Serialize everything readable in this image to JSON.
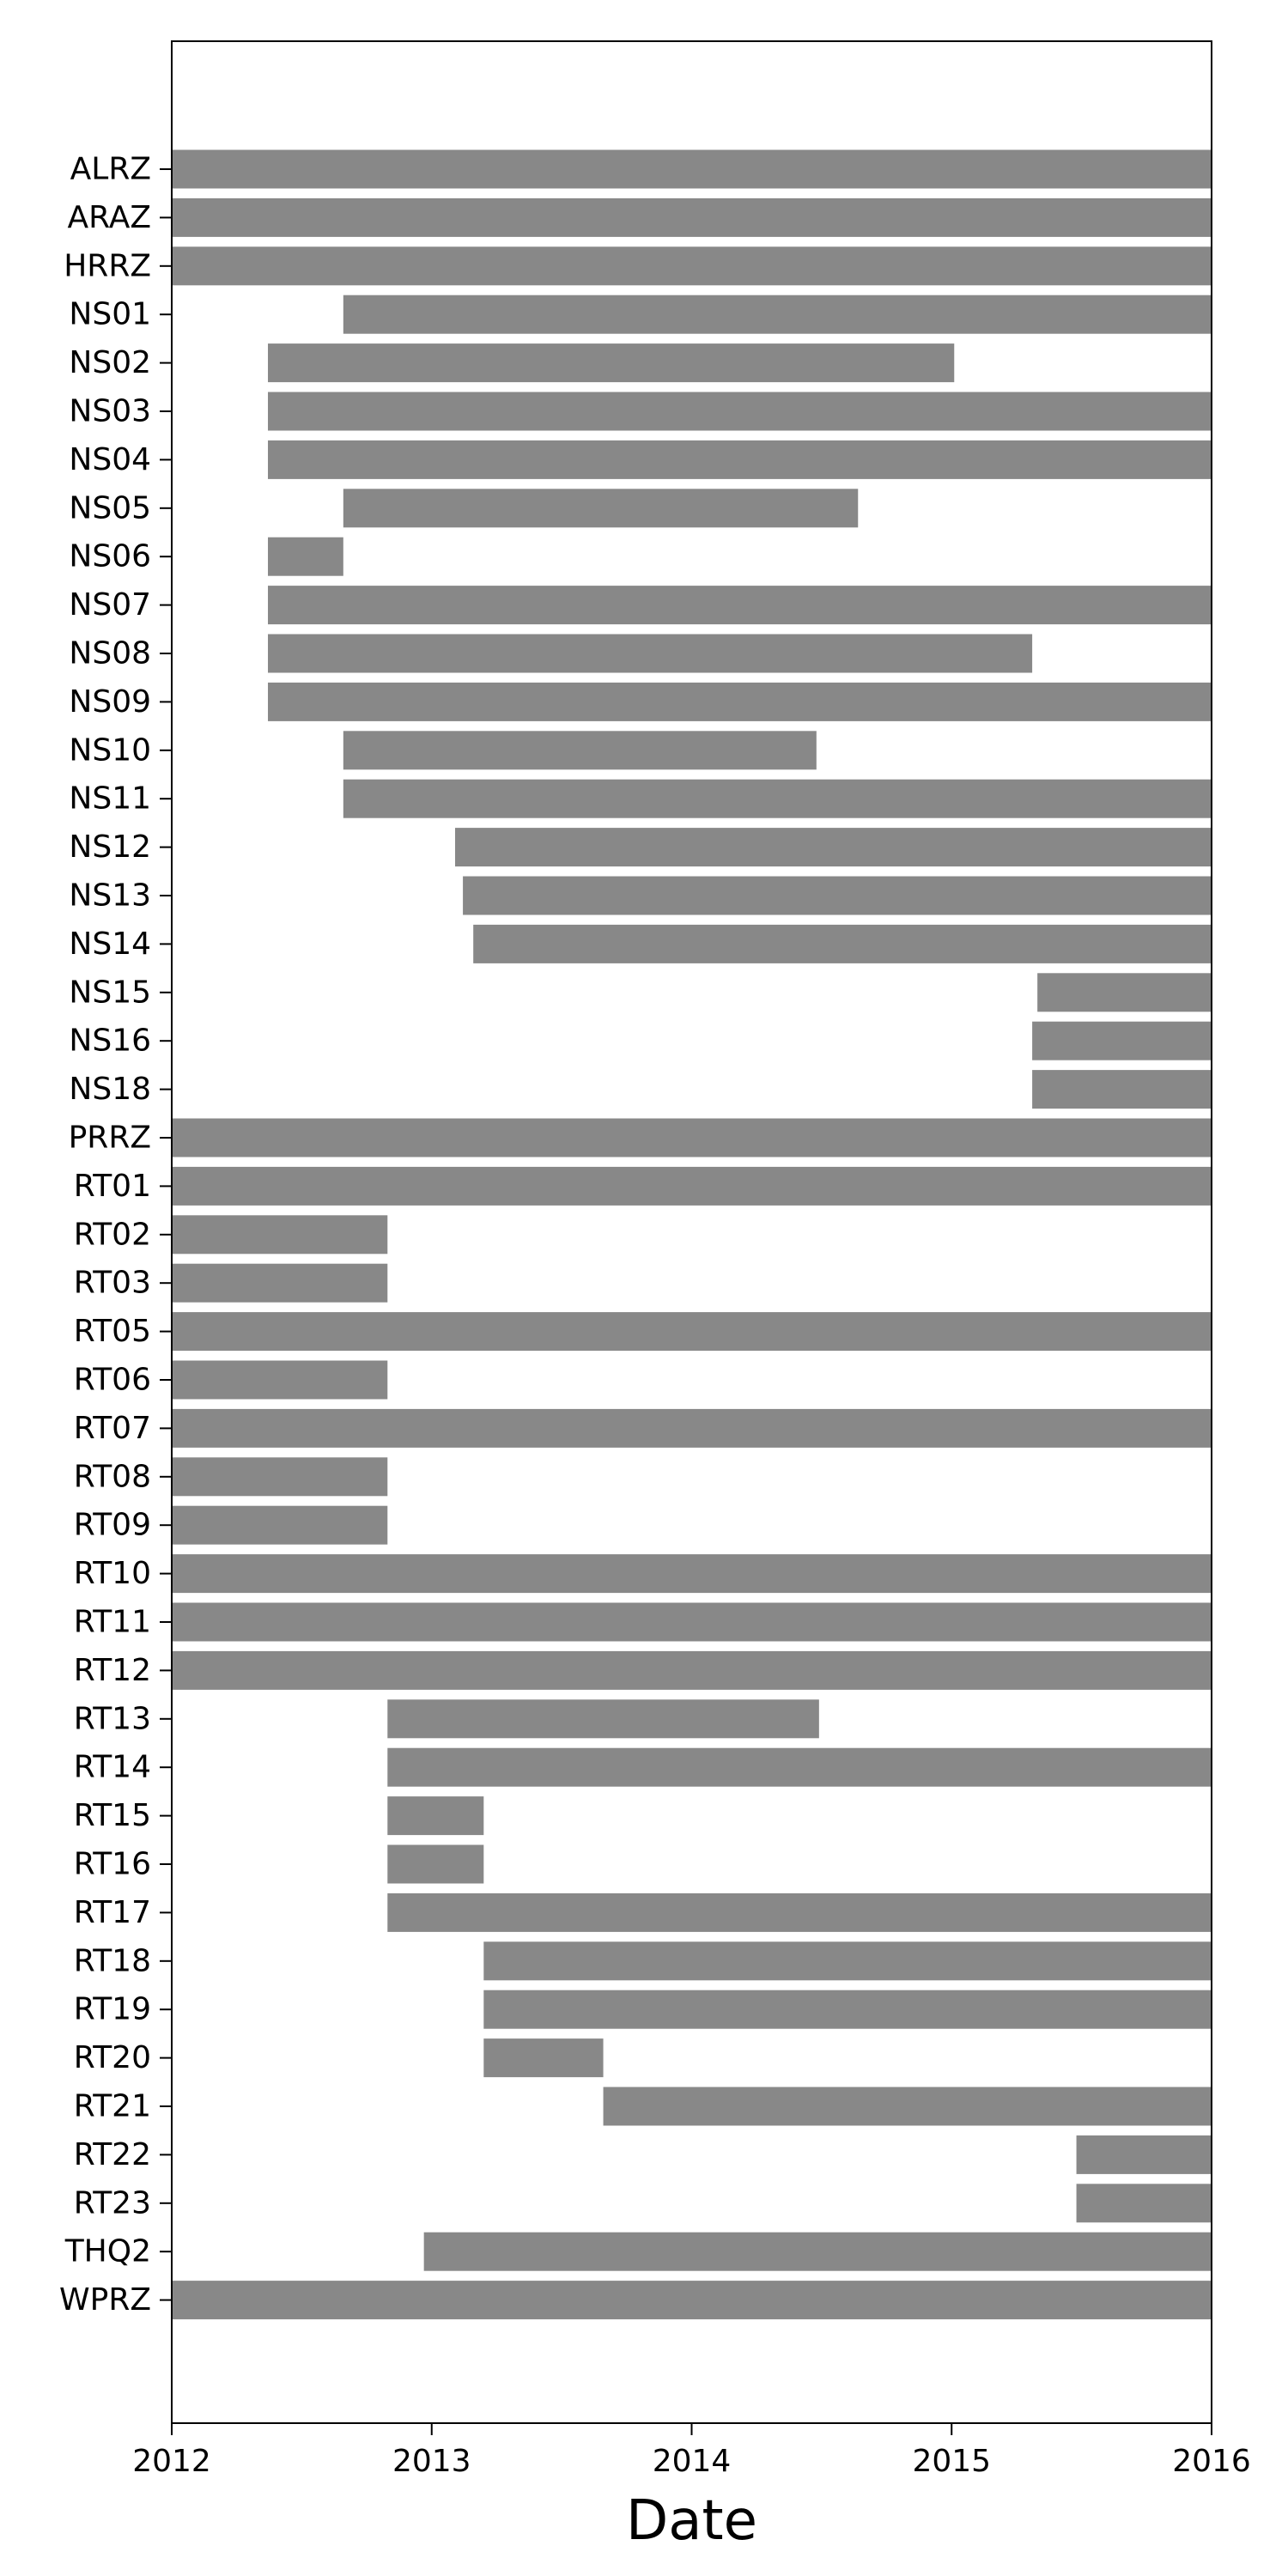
{
  "chart_data": {
    "type": "bar",
    "orientation": "horizontal",
    "bar_color": "#888888",
    "xlabel": "Date",
    "ylabel": "",
    "title": "",
    "xlim": [
      2012.0,
      2016.0
    ],
    "x_ticks": [
      "2012",
      "2013",
      "2014",
      "2015",
      "2016"
    ],
    "grid": false,
    "categories": [
      "ALRZ",
      "ARAZ",
      "HRRZ",
      "NS01",
      "NS02",
      "NS03",
      "NS04",
      "NS05",
      "NS06",
      "NS07",
      "NS08",
      "NS09",
      "NS10",
      "NS11",
      "NS12",
      "NS13",
      "NS14",
      "NS15",
      "NS16",
      "NS18",
      "PRRZ",
      "RT01",
      "RT02",
      "RT03",
      "RT05",
      "RT06",
      "RT07",
      "RT08",
      "RT09",
      "RT10",
      "RT11",
      "RT12",
      "RT13",
      "RT14",
      "RT15",
      "RT16",
      "RT17",
      "RT18",
      "RT19",
      "RT20",
      "RT21",
      "RT22",
      "RT23",
      "THQ2",
      "WPRZ"
    ],
    "intervals": [
      {
        "station": "ALRZ",
        "start": 2012.0,
        "end": 2016.0
      },
      {
        "station": "ARAZ",
        "start": 2012.0,
        "end": 2016.0
      },
      {
        "station": "HRRZ",
        "start": 2012.0,
        "end": 2016.0
      },
      {
        "station": "NS01",
        "start": 2012.66,
        "end": 2016.0
      },
      {
        "station": "NS02",
        "start": 2012.37,
        "end": 2015.01
      },
      {
        "station": "NS03",
        "start": 2012.37,
        "end": 2016.0
      },
      {
        "station": "NS04",
        "start": 2012.37,
        "end": 2016.0
      },
      {
        "station": "NS05",
        "start": 2012.66,
        "end": 2014.64
      },
      {
        "station": "NS06",
        "start": 2012.37,
        "end": 2012.66
      },
      {
        "station": "NS07",
        "start": 2012.37,
        "end": 2016.0
      },
      {
        "station": "NS08",
        "start": 2012.37,
        "end": 2015.31
      },
      {
        "station": "NS09",
        "start": 2012.37,
        "end": 2016.0
      },
      {
        "station": "NS10",
        "start": 2012.66,
        "end": 2014.48
      },
      {
        "station": "NS11",
        "start": 2012.66,
        "end": 2016.0
      },
      {
        "station": "NS12",
        "start": 2013.09,
        "end": 2016.0
      },
      {
        "station": "NS13",
        "start": 2013.12,
        "end": 2016.0
      },
      {
        "station": "NS14",
        "start": 2013.16,
        "end": 2016.0
      },
      {
        "station": "NS15",
        "start": 2015.33,
        "end": 2016.0
      },
      {
        "station": "NS16",
        "start": 2015.31,
        "end": 2016.0
      },
      {
        "station": "NS18",
        "start": 2015.31,
        "end": 2016.0
      },
      {
        "station": "PRRZ",
        "start": 2012.0,
        "end": 2016.0
      },
      {
        "station": "RT01",
        "start": 2012.0,
        "end": 2016.0
      },
      {
        "station": "RT02",
        "start": 2012.0,
        "end": 2012.83
      },
      {
        "station": "RT03",
        "start": 2012.0,
        "end": 2012.83
      },
      {
        "station": "RT05",
        "start": 2012.0,
        "end": 2016.0
      },
      {
        "station": "RT06",
        "start": 2012.0,
        "end": 2012.83
      },
      {
        "station": "RT07",
        "start": 2012.0,
        "end": 2016.0
      },
      {
        "station": "RT08",
        "start": 2012.0,
        "end": 2012.83
      },
      {
        "station": "RT09",
        "start": 2012.0,
        "end": 2012.83
      },
      {
        "station": "RT10",
        "start": 2012.0,
        "end": 2016.0
      },
      {
        "station": "RT11",
        "start": 2012.0,
        "end": 2016.0
      },
      {
        "station": "RT12",
        "start": 2012.0,
        "end": 2016.0
      },
      {
        "station": "RT13",
        "start": 2012.83,
        "end": 2014.49
      },
      {
        "station": "RT14",
        "start": 2012.83,
        "end": 2016.0
      },
      {
        "station": "RT15",
        "start": 2012.83,
        "end": 2013.2
      },
      {
        "station": "RT16",
        "start": 2012.83,
        "end": 2013.2
      },
      {
        "station": "RT17",
        "start": 2012.83,
        "end": 2016.0
      },
      {
        "station": "RT18",
        "start": 2013.2,
        "end": 2016.0
      },
      {
        "station": "RT19",
        "start": 2013.2,
        "end": 2016.0
      },
      {
        "station": "RT20",
        "start": 2013.2,
        "end": 2013.66
      },
      {
        "station": "RT21",
        "start": 2013.66,
        "end": 2016.0
      },
      {
        "station": "RT22",
        "start": 2015.48,
        "end": 2016.0
      },
      {
        "station": "RT23",
        "start": 2015.48,
        "end": 2016.0
      },
      {
        "station": "THQ2",
        "start": 2012.97,
        "end": 2016.0
      },
      {
        "station": "WPRZ",
        "start": 2012.0,
        "end": 2016.0
      }
    ]
  }
}
